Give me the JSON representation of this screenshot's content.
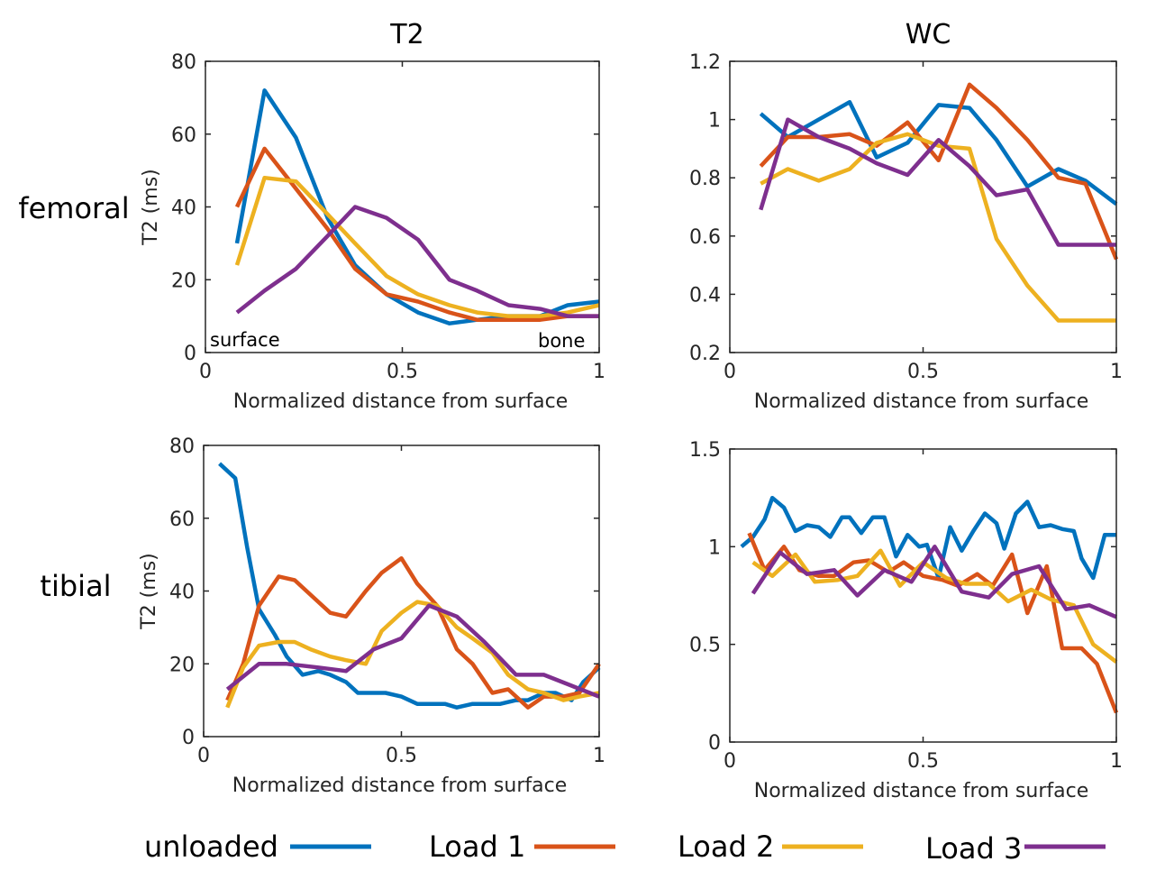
{
  "column_titles": [
    "T2",
    "WC"
  ],
  "row_labels": [
    "femoral",
    "tibial"
  ],
  "legend": [
    {
      "label": "unloaded",
      "color": "#0072BD"
    },
    {
      "label": "Load 1",
      "color": "#D95319"
    },
    {
      "label": "Load 2",
      "color": "#EDB120"
    },
    {
      "label": "Load 3",
      "color": "#7E2F8E"
    }
  ],
  "chart_data": [
    {
      "type": "line",
      "id": "femoral-T2",
      "xlabel": "Normalized distance from surface",
      "ylabel": "T2 (ms)",
      "xlim": [
        0,
        1
      ],
      "ylim": [
        0,
        80
      ],
      "xticks": [
        "0",
        "0.5",
        "1"
      ],
      "yticks": [
        "0",
        "20",
        "40",
        "60",
        "80"
      ],
      "annotations": [
        "surface",
        "bone"
      ],
      "series": [
        {
          "name": "unloaded",
          "x": [
            0.08,
            0.15,
            0.23,
            0.31,
            0.38,
            0.46,
            0.54,
            0.62,
            0.69,
            0.77,
            0.85,
            0.92,
            1.0
          ],
          "values": [
            30,
            72,
            59,
            37,
            24,
            16,
            11,
            8,
            9,
            10,
            10,
            13,
            14
          ]
        },
        {
          "name": "Load 1",
          "x": [
            0.08,
            0.15,
            0.23,
            0.31,
            0.38,
            0.46,
            0.54,
            0.62,
            0.69,
            0.77,
            0.85,
            0.92,
            1.0
          ],
          "values": [
            40,
            56,
            45,
            34,
            23,
            16,
            14,
            11,
            9,
            9,
            9,
            10,
            10
          ]
        },
        {
          "name": "Load 2",
          "x": [
            0.08,
            0.15,
            0.23,
            0.31,
            0.38,
            0.46,
            0.54,
            0.62,
            0.69,
            0.77,
            0.85,
            0.92,
            1.0
          ],
          "values": [
            24,
            48,
            47,
            38,
            30,
            21,
            16,
            13,
            11,
            10,
            10,
            11,
            13
          ]
        },
        {
          "name": "Load 3",
          "x": [
            0.08,
            0.15,
            0.23,
            0.31,
            0.38,
            0.46,
            0.54,
            0.62,
            0.69,
            0.77,
            0.85,
            0.92,
            1.0
          ],
          "values": [
            11,
            17,
            23,
            32,
            40,
            37,
            31,
            20,
            17,
            13,
            12,
            10,
            10
          ]
        }
      ]
    },
    {
      "type": "line",
      "id": "femoral-WC",
      "xlabel": "Normalized distance from surface",
      "ylabel": "",
      "xlim": [
        0,
        1
      ],
      "ylim": [
        0.2,
        1.2
      ],
      "xticks": [
        "0",
        "0.5",
        "1"
      ],
      "yticks": [
        "0.2",
        "0.4",
        "0.6",
        "0.8",
        "1",
        "1.2"
      ],
      "series": [
        {
          "name": "unloaded",
          "x": [
            0.08,
            0.15,
            0.23,
            0.31,
            0.38,
            0.46,
            0.54,
            0.62,
            0.69,
            0.77,
            0.85,
            0.92,
            1.0
          ],
          "values": [
            1.02,
            0.94,
            1.0,
            1.06,
            0.87,
            0.92,
            1.05,
            1.04,
            0.93,
            0.77,
            0.83,
            0.79,
            0.71
          ]
        },
        {
          "name": "Load 1",
          "x": [
            0.08,
            0.15,
            0.23,
            0.31,
            0.38,
            0.46,
            0.54,
            0.62,
            0.69,
            0.77,
            0.85,
            0.92,
            1.0
          ],
          "values": [
            0.84,
            0.94,
            0.94,
            0.95,
            0.91,
            0.99,
            0.86,
            1.12,
            1.04,
            0.93,
            0.8,
            0.78,
            0.52
          ]
        },
        {
          "name": "Load 2",
          "x": [
            0.08,
            0.15,
            0.23,
            0.31,
            0.38,
            0.46,
            0.54,
            0.62,
            0.69,
            0.77,
            0.85,
            0.92,
            1.0
          ],
          "values": [
            0.78,
            0.83,
            0.79,
            0.83,
            0.92,
            0.95,
            0.91,
            0.9,
            0.59,
            0.43,
            0.31,
            0.31,
            0.31
          ]
        },
        {
          "name": "Load 3",
          "x": [
            0.08,
            0.15,
            0.23,
            0.31,
            0.38,
            0.46,
            0.54,
            0.62,
            0.69,
            0.77,
            0.85,
            0.92,
            1.0
          ],
          "values": [
            0.69,
            1.0,
            0.94,
            0.9,
            0.85,
            0.81,
            0.93,
            0.84,
            0.74,
            0.76,
            0.57,
            0.57,
            0.57
          ]
        }
      ]
    },
    {
      "type": "line",
      "id": "tibial-T2",
      "xlabel": "Normalized distance from surface",
      "ylabel": "T2 (ms)",
      "xlim": [
        0,
        1
      ],
      "ylim": [
        0,
        80
      ],
      "xticks": [
        "0",
        "0.5",
        "1"
      ],
      "yticks": [
        "0",
        "20",
        "40",
        "60",
        "80"
      ],
      "series": [
        {
          "name": "unloaded",
          "x": [
            0.04,
            0.08,
            0.11,
            0.14,
            0.18,
            0.21,
            0.25,
            0.29,
            0.32,
            0.36,
            0.39,
            0.43,
            0.46,
            0.5,
            0.54,
            0.57,
            0.61,
            0.64,
            0.68,
            0.71,
            0.75,
            0.79,
            0.82,
            0.86,
            0.89,
            0.93,
            0.96,
            1.0
          ],
          "values": [
            75,
            71,
            52,
            35,
            28,
            22,
            17,
            18,
            17,
            15,
            12,
            12,
            12,
            11,
            9,
            9,
            9,
            8,
            9,
            9,
            9,
            10,
            10,
            12,
            12,
            10,
            15,
            19
          ]
        },
        {
          "name": "Load 1",
          "x": [
            0.06,
            0.1,
            0.14,
            0.19,
            0.23,
            0.27,
            0.32,
            0.36,
            0.41,
            0.45,
            0.5,
            0.54,
            0.59,
            0.64,
            0.68,
            0.73,
            0.77,
            0.82,
            0.86,
            0.91,
            0.95,
            1.0
          ],
          "values": [
            10,
            20,
            36,
            44,
            43,
            39,
            34,
            33,
            40,
            45,
            49,
            42,
            36,
            24,
            20,
            12,
            13,
            8,
            11,
            11,
            12,
            20
          ]
        },
        {
          "name": "Load 2",
          "x": [
            0.06,
            0.1,
            0.14,
            0.19,
            0.23,
            0.27,
            0.32,
            0.36,
            0.41,
            0.45,
            0.5,
            0.54,
            0.59,
            0.64,
            0.68,
            0.73,
            0.77,
            0.82,
            0.86,
            0.91,
            0.95,
            1.0
          ],
          "values": [
            8,
            19,
            25,
            26,
            26,
            24,
            22,
            21,
            20,
            29,
            34,
            37,
            36,
            30,
            27,
            23,
            17,
            13,
            12,
            10,
            11,
            12
          ]
        },
        {
          "name": "Load 3",
          "x": [
            0.06,
            0.14,
            0.21,
            0.29,
            0.36,
            0.43,
            0.5,
            0.57,
            0.64,
            0.71,
            0.79,
            0.86,
            0.93,
            1.0
          ],
          "values": [
            13,
            20,
            20,
            19,
            18,
            24,
            27,
            36,
            33,
            26,
            17,
            17,
            14,
            11
          ]
        }
      ]
    },
    {
      "type": "line",
      "id": "tibial-WC",
      "xlabel": "Normalized distance from surface",
      "ylabel": "",
      "xlim": [
        0,
        1
      ],
      "ylim": [
        0,
        1.5
      ],
      "xticks": [
        "0",
        "0.5",
        "1"
      ],
      "yticks": [
        "0",
        "0.5",
        "1",
        "1.5"
      ],
      "series": [
        {
          "name": "unloaded",
          "x": [
            0.03,
            0.06,
            0.09,
            0.11,
            0.14,
            0.17,
            0.2,
            0.23,
            0.26,
            0.29,
            0.31,
            0.34,
            0.37,
            0.4,
            0.43,
            0.46,
            0.49,
            0.51,
            0.54,
            0.57,
            0.6,
            0.63,
            0.66,
            0.69,
            0.71,
            0.74,
            0.77,
            0.8,
            0.83,
            0.86,
            0.89,
            0.91,
            0.94,
            0.97,
            1.0
          ],
          "values": [
            1.0,
            1.05,
            1.14,
            1.25,
            1.2,
            1.08,
            1.11,
            1.1,
            1.05,
            1.15,
            1.15,
            1.07,
            1.15,
            1.15,
            0.95,
            1.06,
            1.0,
            1.01,
            0.84,
            1.1,
            0.98,
            1.08,
            1.17,
            1.12,
            0.99,
            1.17,
            1.23,
            1.1,
            1.11,
            1.09,
            1.08,
            0.94,
            0.84,
            1.06,
            1.06
          ]
        },
        {
          "name": "Load 1",
          "x": [
            0.05,
            0.09,
            0.14,
            0.18,
            0.23,
            0.27,
            0.32,
            0.36,
            0.41,
            0.45,
            0.5,
            0.55,
            0.59,
            0.64,
            0.68,
            0.73,
            0.77,
            0.82,
            0.86,
            0.91,
            0.95,
            1.0
          ],
          "values": [
            1.07,
            0.88,
            1.0,
            0.88,
            0.85,
            0.85,
            0.92,
            0.93,
            0.87,
            0.92,
            0.85,
            0.83,
            0.8,
            0.86,
            0.8,
            0.96,
            0.66,
            0.9,
            0.48,
            0.48,
            0.4,
            0.15
          ]
        },
        {
          "name": "Load 2",
          "x": [
            0.06,
            0.11,
            0.17,
            0.22,
            0.28,
            0.33,
            0.39,
            0.44,
            0.5,
            0.56,
            0.61,
            0.67,
            0.72,
            0.78,
            0.83,
            0.89,
            0.94,
            1.0
          ],
          "values": [
            0.92,
            0.85,
            0.96,
            0.82,
            0.83,
            0.85,
            0.98,
            0.8,
            0.92,
            0.84,
            0.81,
            0.81,
            0.72,
            0.78,
            0.73,
            0.7,
            0.5,
            0.41
          ]
        },
        {
          "name": "Load 3",
          "x": [
            0.06,
            0.13,
            0.2,
            0.27,
            0.33,
            0.4,
            0.47,
            0.53,
            0.6,
            0.67,
            0.73,
            0.8,
            0.87,
            0.93,
            1.0
          ],
          "values": [
            0.76,
            0.97,
            0.86,
            0.88,
            0.75,
            0.88,
            0.82,
            1.0,
            0.77,
            0.74,
            0.86,
            0.9,
            0.68,
            0.7,
            0.64
          ]
        }
      ]
    }
  ]
}
